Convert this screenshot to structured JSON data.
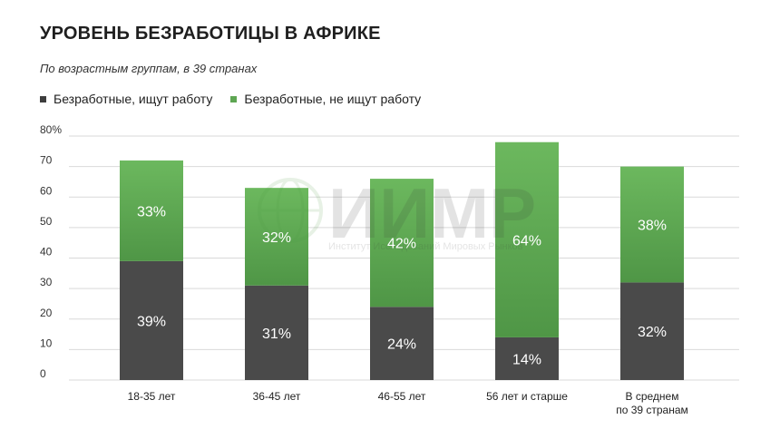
{
  "chart_data": {
    "type": "bar",
    "stacked": true,
    "title": "УРОВЕНЬ БЕЗРАБОТИЦЫ В АФРИКЕ",
    "subtitle": "По возрастным группам, в 39 странах",
    "categories": [
      [
        "18-35 лет"
      ],
      [
        "36-45 лет"
      ],
      [
        "46-55 лет"
      ],
      [
        "56 лет и старше"
      ],
      [
        "В среднем",
        "по 39 странам"
      ]
    ],
    "series": [
      {
        "name": "Безработные, ищут работу",
        "values": [
          39,
          31,
          24,
          14,
          32
        ],
        "labels": [
          "39%",
          "31%",
          "24%",
          "14%",
          "32%"
        ],
        "color": "#4a4a4a"
      },
      {
        "name": "Безработные, не ищут работу",
        "values": [
          33,
          32,
          42,
          64,
          38
        ],
        "labels": [
          "33%",
          "32%",
          "42%",
          "64%",
          "38%"
        ],
        "color": "#5ea653"
      }
    ],
    "ylim": [
      0,
      80
    ],
    "yticks": [
      "0",
      "10",
      "20",
      "30",
      "40",
      "50",
      "60",
      "70",
      "80%"
    ],
    "grid": true,
    "legend_position": "top-left"
  },
  "watermark": {
    "logo": "ИИМР",
    "tagline": "Институт Исследований Мировых Рынков"
  },
  "colors": {
    "green_light": "#6cb85e",
    "green_dark": "#4f9646",
    "dark_gray": "#4a4a4a",
    "grid": "#d9d9d9"
  }
}
